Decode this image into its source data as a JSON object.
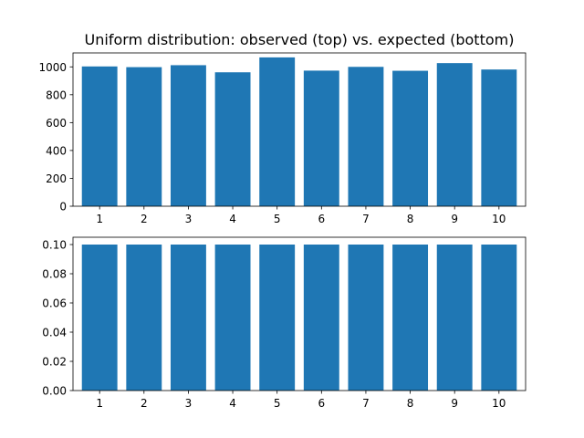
{
  "chart_data": [
    {
      "type": "bar",
      "title": "Uniform distribution: observed (top) vs. expected (bottom)",
      "categories": [
        "1",
        "2",
        "3",
        "4",
        "5",
        "6",
        "7",
        "8",
        "9",
        "10"
      ],
      "values": [
        1003,
        998,
        1012,
        961,
        1068,
        973,
        1000,
        972,
        1027,
        981
      ],
      "ylim": [
        0,
        1100
      ],
      "yticks": [
        "0",
        "200",
        "400",
        "600",
        "800",
        "1000"
      ],
      "ytick_values": [
        0,
        200,
        400,
        600,
        800,
        1000
      ],
      "color": "#1f77b4",
      "grid": false
    },
    {
      "type": "bar",
      "categories": [
        "1",
        "2",
        "3",
        "4",
        "5",
        "6",
        "7",
        "8",
        "9",
        "10"
      ],
      "values": [
        0.1,
        0.1,
        0.1,
        0.1,
        0.1,
        0.1,
        0.1,
        0.1,
        0.1,
        0.1
      ],
      "ylim": [
        0,
        0.105
      ],
      "yticks": [
        "0.00",
        "0.02",
        "0.04",
        "0.06",
        "0.08",
        "0.10"
      ],
      "ytick_values": [
        0,
        0.02,
        0.04,
        0.06,
        0.08,
        0.1
      ],
      "color": "#1f77b4",
      "grid": false
    }
  ]
}
